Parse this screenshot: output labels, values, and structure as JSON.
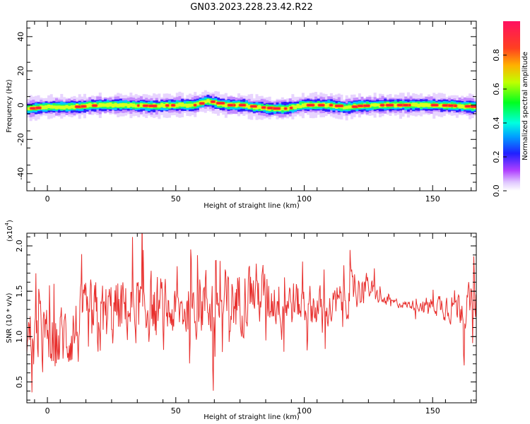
{
  "title": "GN03.2023.228.23.42.R22",
  "colors": {
    "snr_line": "#e8302e",
    "axis": "#000000",
    "background": "#ffffff"
  },
  "chart_data": [
    {
      "type": "heatmap",
      "xlabel": "Height of straight line (km)",
      "ylabel": "Frequency (Hz)",
      "xlim": [
        -8,
        167
      ],
      "ylim": [
        -50,
        49
      ],
      "xticks": [
        "0",
        "50",
        "100",
        "150"
      ],
      "yticks": [
        "40",
        "20",
        "0",
        "-20",
        "-40"
      ],
      "colorbar": {
        "label": "Normalized spectral amplitude",
        "range": [
          0,
          1
        ],
        "ticks": [
          "0.0",
          "0.2",
          "0.4",
          "0.6",
          "0.8"
        ]
      },
      "band": {
        "center_hz_by_height": [
          [
            -8,
            -2
          ],
          [
            0,
            -1
          ],
          [
            10,
            -1
          ],
          [
            20,
            0
          ],
          [
            30,
            0
          ],
          [
            40,
            -0.5
          ],
          [
            50,
            0
          ],
          [
            57,
            0
          ],
          [
            62,
            2.5
          ],
          [
            66,
            1
          ],
          [
            70,
            0
          ],
          [
            76,
            0
          ],
          [
            80,
            -1
          ],
          [
            88,
            -2
          ],
          [
            93,
            -2
          ],
          [
            100,
            0
          ],
          [
            110,
            0
          ],
          [
            116,
            -1.5
          ],
          [
            120,
            -0.5
          ],
          [
            130,
            0
          ],
          [
            140,
            0
          ],
          [
            150,
            0
          ],
          [
            160,
            -0.5
          ],
          [
            167,
            -1
          ]
        ],
        "core_halfwidth_hz": 2.5,
        "halo_halfwidth_hz": 6
      }
    },
    {
      "type": "line",
      "xlabel": "Height of straight line (km)",
      "ylabel": "SNR (10 * v/v)",
      "yscale_label": "(x10",
      "yscale_exp": "4",
      "xlim": [
        -8,
        167
      ],
      "ylim": [
        0.27,
        2.14
      ],
      "xticks": [
        "0",
        "50",
        "100",
        "150"
      ],
      "yticks": [
        "0.5",
        "1.0",
        "1.5",
        "2.0"
      ],
      "series": [
        {
          "envelope_by_height": [
            [
              -8,
              1.0,
              0.5
            ],
            [
              0,
              0.9,
              0.55
            ],
            [
              10,
              1.05,
              0.55
            ],
            [
              20,
              1.2,
              0.6
            ],
            [
              30,
              1.3,
              0.5
            ],
            [
              40,
              1.35,
              0.55
            ],
            [
              50,
              1.25,
              0.4
            ],
            [
              60,
              1.4,
              0.55
            ],
            [
              70,
              1.35,
              0.55
            ],
            [
              80,
              1.5,
              0.5
            ],
            [
              90,
              1.4,
              0.4
            ],
            [
              100,
              1.35,
              0.35
            ],
            [
              110,
              1.3,
              0.3
            ],
            [
              120,
              1.5,
              0.3
            ],
            [
              125,
              1.55,
              0.2
            ],
            [
              130,
              1.4,
              0.08
            ],
            [
              140,
              1.35,
              0.06
            ],
            [
              150,
              1.35,
              0.15
            ],
            [
              160,
              1.35,
              0.3
            ],
            [
              167,
              1.35,
              0.3
            ]
          ]
        }
      ]
    }
  ]
}
